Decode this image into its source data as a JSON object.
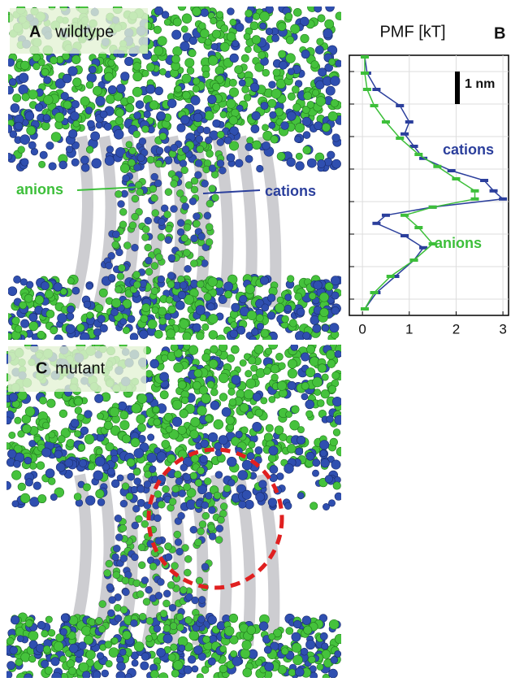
{
  "panels": [
    {
      "letter": "A",
      "label": "wildtype",
      "annotations": [
        "anions",
        "cations"
      ]
    },
    {
      "letter": "C",
      "label": "mutant"
    }
  ],
  "chart_data": {
    "type": "line",
    "letter": "B",
    "title": "PMF [kT]",
    "scale_label": "1 nm",
    "xlim": [
      -0.28,
      3.12
    ],
    "xticks": [
      0,
      1,
      2,
      3
    ],
    "ylim": [
      0,
      8
    ],
    "yticks": [
      0.5,
      1.5,
      2.5,
      3.5,
      4.5,
      5.5,
      6.5,
      7.5
    ],
    "grid": true,
    "series": [
      {
        "name": "cations",
        "color": "#2b3f9c",
        "positions": [
          7.95,
          7.45,
          6.95,
          6.45,
          5.95,
          5.58,
          5.2,
          4.83,
          4.45,
          4.15,
          3.83,
          3.58,
          3.33,
          3.08,
          2.83,
          2.45,
          2.08,
          1.7,
          1.2,
          0.7,
          0.2
        ],
        "values": [
          0.05,
          0.1,
          0.3,
          0.8,
          1.0,
          0.9,
          1.1,
          1.3,
          1.9,
          2.6,
          2.8,
          3.0,
          1.5,
          0.5,
          0.3,
          0.9,
          1.3,
          1.1,
          0.7,
          0.3,
          0.05
        ]
      },
      {
        "name": "anions",
        "color": "#3dbf3a",
        "positions": [
          7.95,
          7.45,
          6.95,
          6.45,
          5.95,
          5.45,
          4.95,
          4.58,
          4.2,
          3.83,
          3.58,
          3.33,
          3.08,
          2.7,
          2.2,
          1.7,
          1.2,
          0.7,
          0.2
        ],
        "values": [
          0.05,
          0.05,
          0.1,
          0.25,
          0.5,
          0.8,
          1.2,
          1.6,
          2.0,
          2.4,
          2.4,
          1.5,
          0.9,
          1.2,
          1.5,
          1.1,
          0.6,
          0.25,
          0.05
        ]
      }
    ]
  }
}
